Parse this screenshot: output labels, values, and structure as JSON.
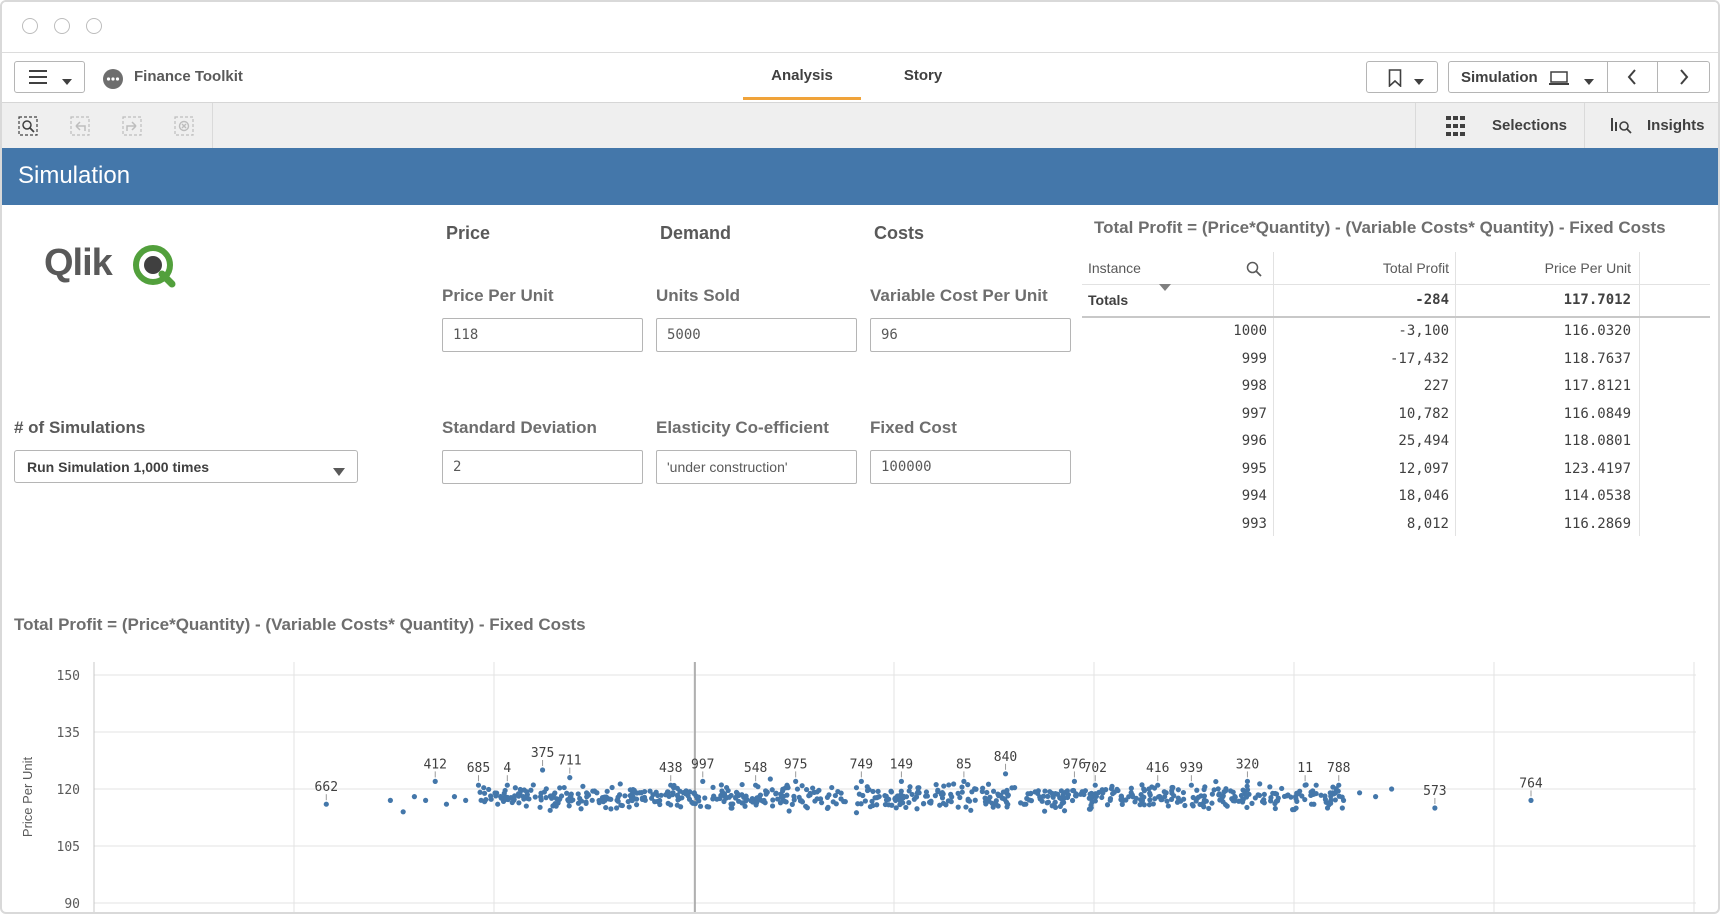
{
  "window": {
    "title": ""
  },
  "nav": {
    "app_name": "Finance Toolkit",
    "tabs": [
      {
        "label": "Analysis",
        "active": true
      },
      {
        "label": "Story",
        "active": false
      }
    ],
    "sheet_select": "Simulation"
  },
  "toolbar": {
    "selections_label": "Selections",
    "insights_label": "Insights"
  },
  "sheet": {
    "title": "Simulation"
  },
  "logo": {
    "text": "Qlik"
  },
  "inputs": {
    "headers": {
      "price": "Price",
      "demand": "Demand",
      "costs": "Costs"
    },
    "price_per_unit": {
      "label": "Price Per Unit",
      "value": "118"
    },
    "units_sold": {
      "label": "Units Sold",
      "value": "5000"
    },
    "variable_cost": {
      "label": "Variable Cost Per Unit",
      "value": "96"
    },
    "std_dev": {
      "label": "Standard Deviation",
      "value": "2"
    },
    "elasticity": {
      "label": "Elasticity Co-efficient",
      "value": "'under construction'"
    },
    "fixed_cost": {
      "label": "Fixed Cost",
      "value": "100000"
    }
  },
  "simulations": {
    "label": "# of Simulations",
    "selected": "Run Simulation 1,000 times"
  },
  "table": {
    "title": "Total Profit = (Price*Quantity) - (Variable Costs* Quantity) - Fixed Costs",
    "columns": [
      "Instance",
      "Total Profit",
      "Price Per Unit"
    ],
    "totals": {
      "label": "Totals",
      "total_profit": "-284",
      "price_per_unit": "117.7012"
    },
    "rows": [
      [
        "1000",
        "-3,100",
        "116.0320"
      ],
      [
        "999",
        "-17,432",
        "118.7637"
      ],
      [
        "998",
        "227",
        "117.8121"
      ],
      [
        "997",
        "10,782",
        "116.0849"
      ],
      [
        "996",
        "25,494",
        "118.0801"
      ],
      [
        "995",
        "12,097",
        "123.4197"
      ],
      [
        "994",
        "18,046",
        "114.0538"
      ],
      [
        "993",
        "8,012",
        "116.2869"
      ]
    ]
  },
  "chart_data": {
    "type": "scatter",
    "title": "Total Profit = (Price*Quantity) - (Variable Costs* Quantity) - Fixed Costs",
    "ylabel": "Price Per Unit",
    "xlabel": "",
    "y_ticks": [
      150,
      135,
      120,
      105,
      90
    ],
    "ylim": [
      90,
      150
    ],
    "grid": true,
    "color": "#4477aa",
    "labeled_points": [
      {
        "label": "662",
        "x": 0.145,
        "y": 116
      },
      {
        "label": "412",
        "x": 0.213,
        "y": 122
      },
      {
        "label": "685",
        "x": 0.24,
        "y": 121
      },
      {
        "label": "4",
        "x": 0.258,
        "y": 121
      },
      {
        "label": "375",
        "x": 0.28,
        "y": 125
      },
      {
        "label": "711",
        "x": 0.297,
        "y": 123
      },
      {
        "label": "438",
        "x": 0.36,
        "y": 121
      },
      {
        "label": "997",
        "x": 0.38,
        "y": 122
      },
      {
        "label": "548",
        "x": 0.413,
        "y": 121
      },
      {
        "label": "975",
        "x": 0.438,
        "y": 122
      },
      {
        "label": "749",
        "x": 0.479,
        "y": 122
      },
      {
        "label": "149",
        "x": 0.504,
        "y": 122
      },
      {
        "label": "85",
        "x": 0.543,
        "y": 122
      },
      {
        "label": "840",
        "x": 0.569,
        "y": 124
      },
      {
        "label": "976",
        "x": 0.612,
        "y": 122
      },
      {
        "label": "702",
        "x": 0.625,
        "y": 121
      },
      {
        "label": "416",
        "x": 0.664,
        "y": 121
      },
      {
        "label": "939",
        "x": 0.685,
        "y": 121
      },
      {
        "label": "320",
        "x": 0.72,
        "y": 122
      },
      {
        "label": "11",
        "x": 0.756,
        "y": 121
      },
      {
        "label": "788",
        "x": 0.777,
        "y": 121
      },
      {
        "label": "573",
        "x": 0.837,
        "y": 115
      },
      {
        "label": "764",
        "x": 0.897,
        "y": 117
      }
    ]
  }
}
